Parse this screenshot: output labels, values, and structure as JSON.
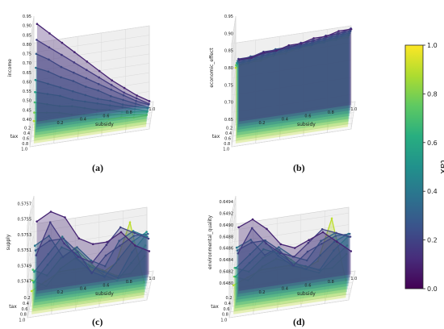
{
  "panels": [
    {
      "label": "(a)"
    },
    {
      "label": "(b)"
    },
    {
      "label": "(c)"
    },
    {
      "label": "(d)"
    }
  ],
  "colorbar": {
    "title": "tax",
    "ticks": [
      "0.0",
      "0.2",
      "0.4",
      "0.6",
      "0.8",
      "1.0"
    ]
  },
  "chart_data": [
    {
      "type": "line",
      "projection": "3d",
      "xlabel": "subsidy",
      "ylabel": "tax",
      "zlabel": "income",
      "x_ticks": [
        "0.2",
        "0.4",
        "0.6",
        "0.8",
        "1.0"
      ],
      "y_ticks": [
        "0.2",
        "0.4",
        "0.6",
        "0.8",
        "1.0"
      ],
      "z_ticks": [
        "0.40",
        "0.45",
        "0.50",
        "0.55",
        "0.60",
        "0.65",
        "0.70",
        "0.75",
        "0.80",
        "0.85",
        "0.90",
        "0.95"
      ],
      "zlim": [
        0.4,
        0.95
      ],
      "x": [
        0.1,
        0.2,
        0.3,
        0.4,
        0.5,
        0.6,
        0.7,
        0.8,
        0.9,
        1.0
      ],
      "series": [
        {
          "tax": 0.1,
          "values": [
            0.92,
            0.86,
            0.8,
            0.74,
            0.68,
            0.62,
            0.56,
            0.51,
            0.46,
            0.42
          ]
        },
        {
          "tax": 0.2,
          "values": [
            0.85,
            0.8,
            0.75,
            0.7,
            0.65,
            0.6,
            0.55,
            0.5,
            0.46,
            0.42
          ]
        },
        {
          "tax": 0.3,
          "values": [
            0.79,
            0.75,
            0.7,
            0.66,
            0.62,
            0.58,
            0.54,
            0.5,
            0.46,
            0.43
          ]
        },
        {
          "tax": 0.4,
          "values": [
            0.73,
            0.7,
            0.66,
            0.63,
            0.59,
            0.56,
            0.52,
            0.49,
            0.46,
            0.43
          ]
        },
        {
          "tax": 0.5,
          "values": [
            0.68,
            0.65,
            0.62,
            0.59,
            0.56,
            0.53,
            0.51,
            0.48,
            0.46,
            0.44
          ]
        },
        {
          "tax": 0.6,
          "values": [
            0.63,
            0.61,
            0.59,
            0.56,
            0.54,
            0.52,
            0.5,
            0.48,
            0.46,
            0.44
          ]
        },
        {
          "tax": 0.7,
          "values": [
            0.59,
            0.57,
            0.55,
            0.54,
            0.52,
            0.5,
            0.49,
            0.47,
            0.46,
            0.45
          ]
        },
        {
          "tax": 0.8,
          "values": [
            0.55,
            0.54,
            0.53,
            0.51,
            0.5,
            0.49,
            0.48,
            0.47,
            0.46,
            0.45
          ]
        },
        {
          "tax": 0.9,
          "values": [
            0.52,
            0.51,
            0.5,
            0.5,
            0.49,
            0.48,
            0.47,
            0.47,
            0.46,
            0.46
          ]
        }
      ]
    },
    {
      "type": "line",
      "projection": "3d",
      "xlabel": "subsidy",
      "ylabel": "tax",
      "zlabel": "economic_effect",
      "x_ticks": [
        "0.2",
        "0.4",
        "0.6",
        "0.8",
        "1.0"
      ],
      "y_ticks": [
        "0.2",
        "0.4",
        "0.6",
        "0.8",
        "1.0"
      ],
      "z_ticks": [
        "0.65",
        "0.70",
        "0.75",
        "0.80",
        "0.85",
        "0.90",
        "0.95"
      ],
      "zlim": [
        0.65,
        0.95
      ],
      "x": [
        0.1,
        0.2,
        0.3,
        0.4,
        0.5,
        0.6,
        0.7,
        0.8,
        0.9,
        1.0
      ],
      "series": [
        {
          "tax": 0.1,
          "values": [
            0.83,
            0.83,
            0.84,
            0.84,
            0.85,
            0.85,
            0.86,
            0.86,
            0.87,
            0.87
          ]
        },
        {
          "tax": 0.2,
          "values": [
            0.84,
            0.84,
            0.85,
            0.85,
            0.85,
            0.86,
            0.86,
            0.87,
            0.87,
            0.88
          ]
        },
        {
          "tax": 0.3,
          "values": [
            0.84,
            0.85,
            0.85,
            0.86,
            0.86,
            0.86,
            0.87,
            0.87,
            0.88,
            0.88
          ]
        },
        {
          "tax": 0.4,
          "values": [
            0.85,
            0.85,
            0.86,
            0.86,
            0.87,
            0.87,
            0.87,
            0.88,
            0.88,
            0.89
          ]
        },
        {
          "tax": 0.5,
          "values": [
            0.85,
            0.86,
            0.86,
            0.87,
            0.87,
            0.87,
            0.88,
            0.88,
            0.89,
            0.89
          ]
        },
        {
          "tax": 0.6,
          "values": [
            0.86,
            0.86,
            0.87,
            0.87,
            0.88,
            0.88,
            0.88,
            0.89,
            0.89,
            0.9
          ]
        },
        {
          "tax": 0.7,
          "values": [
            0.86,
            0.87,
            0.87,
            0.88,
            0.88,
            0.89,
            0.89,
            0.89,
            0.9,
            0.9
          ]
        },
        {
          "tax": 0.8,
          "values": [
            0.87,
            0.87,
            0.88,
            0.88,
            0.89,
            0.89,
            0.9,
            0.9,
            0.9,
            0.91
          ]
        },
        {
          "tax": 0.9,
          "values": [
            0.87,
            0.88,
            0.88,
            0.89,
            0.89,
            0.9,
            0.9,
            0.91,
            0.91,
            0.91
          ]
        }
      ]
    },
    {
      "type": "line",
      "projection": "3d",
      "xlabel": "subsidy",
      "ylabel": "tax",
      "zlabel": "supply",
      "x_ticks": [
        "0.2",
        "0.4",
        "0.6",
        "0.8",
        "1.0"
      ],
      "y_ticks": [
        "0.2",
        "0.4",
        "0.6",
        "0.8",
        "1.0"
      ],
      "z_ticks": [
        "0.5747",
        "0.5749",
        "0.5751",
        "0.5753",
        "0.5755",
        "0.5757"
      ],
      "zlim": [
        0.5746,
        0.5758
      ],
      "x": [
        0.1,
        0.2,
        0.3,
        0.4,
        0.5,
        0.6,
        0.7,
        0.8,
        0.9
      ],
      "series": [
        {
          "tax": 0.1,
          "values": [
            0.5755,
            0.5756,
            0.5755,
            0.5752,
            0.5751,
            0.5751,
            0.5752,
            0.575,
            0.5749
          ]
        },
        {
          "tax": 0.2,
          "values": [
            0.5751,
            0.5755,
            0.5752,
            0.575,
            0.5749,
            0.5751,
            0.5753,
            0.5752,
            0.5751
          ]
        },
        {
          "tax": 0.3,
          "values": [
            0.5752,
            0.5753,
            0.5753,
            0.5751,
            0.5748,
            0.575,
            0.5751,
            0.5752,
            0.5752
          ]
        },
        {
          "tax": 0.4,
          "values": [
            0.5753,
            0.5754,
            0.5751,
            0.5752,
            0.575,
            0.5749,
            0.5752,
            0.5753,
            0.5752
          ]
        },
        {
          "tax": 0.5,
          "values": [
            0.575,
            0.5752,
            0.5754,
            0.5751,
            0.5749,
            0.5748,
            0.575,
            0.5752,
            0.5753
          ]
        },
        {
          "tax": 0.6,
          "values": [
            0.5749,
            0.5751,
            0.5753,
            0.5752,
            0.575,
            0.5749,
            0.5748,
            0.5751,
            0.5753
          ]
        },
        {
          "tax": 0.7,
          "values": [
            0.5751,
            0.575,
            0.5752,
            0.5753,
            0.5751,
            0.5749,
            0.5748,
            0.575,
            0.5752
          ]
        },
        {
          "tax": 0.8,
          "values": [
            0.575,
            0.5749,
            0.5751,
            0.5752,
            0.5751,
            0.575,
            0.5749,
            0.5749,
            0.5751
          ]
        },
        {
          "tax": 0.9,
          "values": [
            0.5749,
            0.575,
            0.5751,
            0.5751,
            0.5751,
            0.575,
            0.5751,
            0.5756,
            0.5748
          ]
        }
      ]
    },
    {
      "type": "line",
      "projection": "3d",
      "xlabel": "subsidy",
      "ylabel": "tax",
      "zlabel": "environmental_quality",
      "x_ticks": [
        "0.2",
        "0.4",
        "0.6",
        "0.8",
        "1.0"
      ],
      "y_ticks": [
        "0.2",
        "0.4",
        "0.6",
        "0.8",
        "1.0"
      ],
      "z_ticks": [
        "0.6480",
        "0.6482",
        "0.6484",
        "0.6486",
        "0.6488",
        "0.6490",
        "0.6492",
        "0.6494"
      ],
      "zlim": [
        0.6479,
        0.6495
      ],
      "x": [
        0.1,
        0.2,
        0.3,
        0.4,
        0.5,
        0.6,
        0.7,
        0.8,
        0.9
      ],
      "series": [
        {
          "tax": 0.1,
          "values": [
            0.649,
            0.6491,
            0.6489,
            0.6486,
            0.6485,
            0.6486,
            0.6487,
            0.6485,
            0.6483
          ]
        },
        {
          "tax": 0.2,
          "values": [
            0.6486,
            0.649,
            0.6487,
            0.6485,
            0.6484,
            0.6486,
            0.6488,
            0.6487,
            0.6486
          ]
        },
        {
          "tax": 0.3,
          "values": [
            0.6487,
            0.6488,
            0.6488,
            0.6486,
            0.6483,
            0.6485,
            0.6486,
            0.6487,
            0.6487
          ]
        },
        {
          "tax": 0.4,
          "values": [
            0.6488,
            0.6489,
            0.6486,
            0.6487,
            0.6485,
            0.6484,
            0.6487,
            0.6488,
            0.6487
          ]
        },
        {
          "tax": 0.5,
          "values": [
            0.6485,
            0.6487,
            0.6489,
            0.6486,
            0.6484,
            0.6483,
            0.6485,
            0.6487,
            0.6488
          ]
        },
        {
          "tax": 0.6,
          "values": [
            0.6484,
            0.6486,
            0.6488,
            0.6487,
            0.6485,
            0.6484,
            0.6483,
            0.6486,
            0.6488
          ]
        },
        {
          "tax": 0.7,
          "values": [
            0.6486,
            0.6485,
            0.6487,
            0.6488,
            0.6486,
            0.6484,
            0.6483,
            0.6485,
            0.6487
          ]
        },
        {
          "tax": 0.8,
          "values": [
            0.6485,
            0.6484,
            0.6486,
            0.6487,
            0.6486,
            0.6485,
            0.6484,
            0.6484,
            0.6486
          ]
        },
        {
          "tax": 0.9,
          "values": [
            0.6484,
            0.6485,
            0.6486,
            0.6486,
            0.6486,
            0.6485,
            0.6486,
            0.6493,
            0.6482
          ]
        }
      ]
    }
  ]
}
